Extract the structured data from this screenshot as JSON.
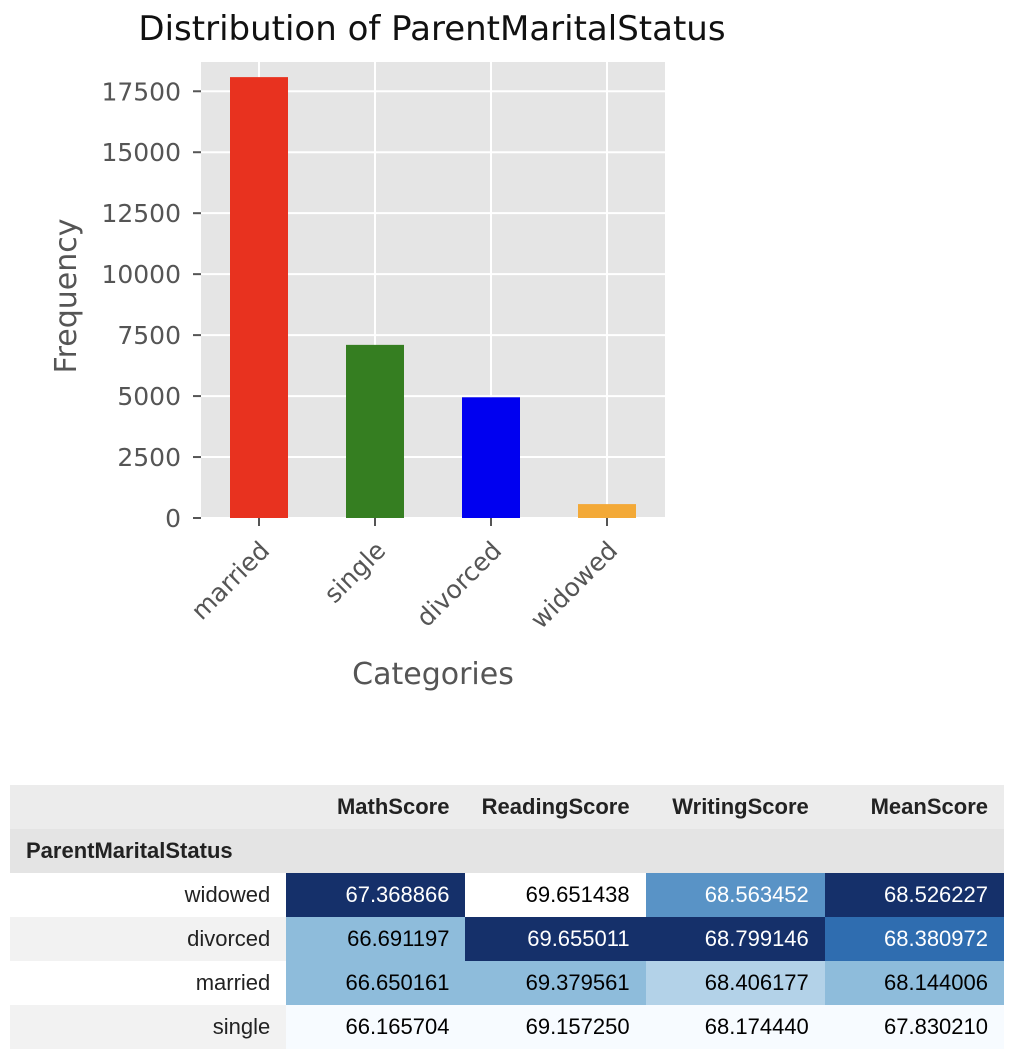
{
  "chart_data": {
    "type": "bar",
    "title": "Distribution of ParentMaritalStatus",
    "xlabel": "Categories",
    "ylabel": "Frequency",
    "categories": [
      "married",
      "single",
      "divorced",
      "widowed"
    ],
    "values": [
      18080,
      7100,
      4950,
      570
    ],
    "colors": [
      "#e8321f",
      "#357e21",
      "#0000f0",
      "#f3a937"
    ],
    "ylim": [
      0,
      18700
    ],
    "yticks": [
      0,
      2500,
      5000,
      7500,
      10000,
      12500,
      15000,
      17500
    ],
    "ytick_labels": [
      "0",
      "2500",
      "5000",
      "7500",
      "10000",
      "12500",
      "15000",
      "17500"
    ],
    "grid": true,
    "plot_background": "#e5e5e5"
  },
  "table": {
    "columns": [
      "MathScore",
      "ReadingScore",
      "WritingScore",
      "MeanScore"
    ],
    "index_name": "ParentMaritalStatus",
    "rows": [
      {
        "label": "widowed",
        "values": [
          "67.368866",
          "69.651438",
          "68.563452",
          "68.526227"
        ],
        "bg": [
          "#15306a",
          "#ffffff",
          "#5993c6",
          "#15306a"
        ],
        "fg": [
          "#ffffff",
          "#000000",
          "#ffffff",
          "#ffffff"
        ]
      },
      {
        "label": "divorced",
        "values": [
          "66.691197",
          "69.655011",
          "68.799146",
          "68.380972"
        ],
        "bg": [
          "#8ebcdb",
          "#15306a",
          "#15306a",
          "#2f6db0"
        ],
        "fg": [
          "#000000",
          "#ffffff",
          "#ffffff",
          "#ffffff"
        ]
      },
      {
        "label": "married",
        "values": [
          "66.650161",
          "69.379561",
          "68.406177",
          "68.144006"
        ],
        "bg": [
          "#8ebcdb",
          "#8ebcdb",
          "#b3d2e8",
          "#8ebcdb"
        ],
        "fg": [
          "#000000",
          "#000000",
          "#000000",
          "#000000"
        ]
      },
      {
        "label": "single",
        "values": [
          "66.165704",
          "69.157250",
          "68.174440",
          "67.830210"
        ],
        "bg": [
          "#f7fbff",
          "#f7fbff",
          "#f7fbff",
          "#f7fbff"
        ],
        "fg": [
          "#000000",
          "#000000",
          "#000000",
          "#000000"
        ]
      }
    ]
  }
}
